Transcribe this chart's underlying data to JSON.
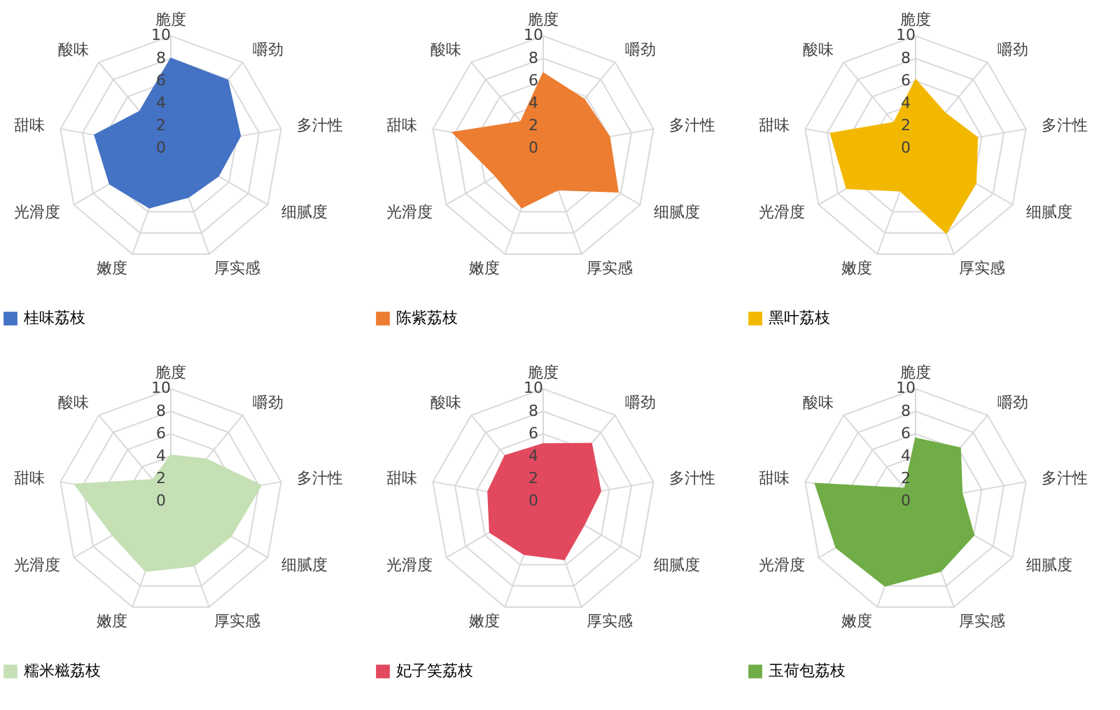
{
  "chart_data": [
    {
      "type": "radar",
      "categories": [
        "脆度",
        "嚼劲",
        "多汁性",
        "细腻度",
        "厚实感",
        "嫩度",
        "光滑度",
        "甜味",
        "酸味"
      ],
      "ylim": [
        0,
        10
      ],
      "yticks": [
        0,
        2,
        4,
        6,
        8,
        10
      ],
      "grid": true,
      "legend": "bottom",
      "series": [
        {
          "name": "桂味荔枝",
          "color": "#4472c4",
          "values": [
            8.0,
            7.9,
            6.3,
            4.9,
            4.6,
            5.6,
            6.3,
            6.9,
            4.3
          ]
        }
      ]
    },
    {
      "type": "radar",
      "categories": [
        "脆度",
        "嚼劲",
        "多汁性",
        "细腻度",
        "厚实感",
        "嫩度",
        "光滑度",
        "甜味",
        "酸味"
      ],
      "ylim": [
        0,
        10
      ],
      "yticks": [
        0,
        2,
        4,
        6,
        8,
        10
      ],
      "grid": true,
      "legend": "bottom",
      "series": [
        {
          "name": "陈紫荔枝",
          "color": "#ed7d31",
          "values": [
            6.7,
            5.7,
            6.0,
            7.7,
            3.9,
            5.6,
            4.9,
            8.2,
            3.1
          ]
        }
      ]
    },
    {
      "type": "radar",
      "categories": [
        "脆度",
        "嚼劲",
        "多汁性",
        "细腻度",
        "厚实感",
        "嫩度",
        "光滑度",
        "甜味",
        "酸味"
      ],
      "ylim": [
        0,
        10
      ],
      "yticks": [
        0,
        2,
        4,
        6,
        8,
        10
      ],
      "grid": true,
      "legend": "bottom",
      "series": [
        {
          "name": "黑叶荔枝",
          "color": "#f2b800",
          "values": [
            6.1,
            4.1,
            5.6,
            6.2,
            8.0,
            4.0,
            7.1,
            7.7,
            3.0
          ]
        }
      ]
    },
    {
      "type": "radar",
      "categories": [
        "脆度",
        "嚼劲",
        "多汁性",
        "细腻度",
        "厚实感",
        "嫩度",
        "光滑度",
        "甜味",
        "酸味"
      ],
      "ylim": [
        0,
        10
      ],
      "yticks": [
        0,
        2,
        4,
        6,
        8,
        10
      ],
      "grid": true,
      "legend": "bottom",
      "series": [
        {
          "name": "糯米糍荔枝",
          "color": "#c5e0b4",
          "values": [
            4.1,
            4.9,
            8.2,
            6.2,
            6.1,
            6.6,
            6.0,
            8.7,
            2.5
          ]
        }
      ]
    },
    {
      "type": "radar",
      "categories": [
        "脆度",
        "嚼劲",
        "多汁性",
        "细腻度",
        "厚实感",
        "嫩度",
        "光滑度",
        "甜味",
        "酸味"
      ],
      "ylim": [
        0,
        10
      ],
      "yticks": [
        0,
        2,
        4,
        6,
        8,
        10
      ],
      "grid": true,
      "legend": "bottom",
      "series": [
        {
          "name": "妃子笑荔枝",
          "color": "#e2495e",
          "values": [
            5.1,
            6.7,
            5.2,
            4.2,
            5.5,
            5.0,
            5.5,
            5.0,
            5.3
          ]
        }
      ]
    },
    {
      "type": "radar",
      "categories": [
        "脆度",
        "嚼劲",
        "多汁性",
        "细腻度",
        "厚实感",
        "嫩度",
        "光滑度",
        "甜味",
        "酸味"
      ],
      "ylim": [
        0,
        10
      ],
      "yticks": [
        0,
        2,
        4,
        6,
        8,
        10
      ],
      "grid": true,
      "legend": "bottom",
      "series": [
        {
          "name": "玉荷包荔枝",
          "color": "#70ad47",
          "values": [
            5.6,
            6.2,
            4.2,
            6.0,
            6.6,
            8.0,
            8.2,
            9.1,
            1.5
          ]
        }
      ]
    }
  ]
}
